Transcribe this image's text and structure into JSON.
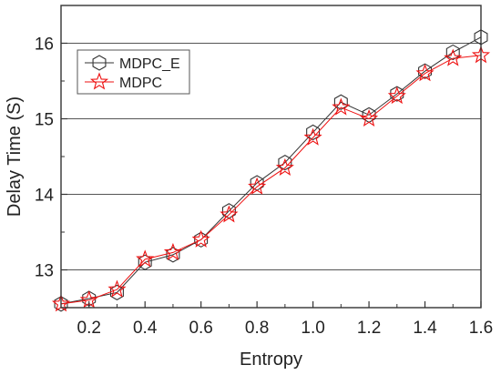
{
  "chart_data": {
    "type": "line",
    "title": "",
    "xlabel": "Entropy",
    "ylabel": "Delay Time (S)",
    "xlim": [
      0.1,
      1.6
    ],
    "ylim": [
      12.5,
      16.5
    ],
    "grid": "horizontal",
    "legend_position": "top-left",
    "x": [
      0.1,
      0.2,
      0.3,
      0.4,
      0.5,
      0.6,
      0.7,
      0.8,
      0.9,
      1.0,
      1.1,
      1.2,
      1.3,
      1.4,
      1.5,
      1.6
    ],
    "x_ticks": [
      "0.2",
      "0.4",
      "0.6",
      "0.8",
      "1.0",
      "1.2",
      "1.4",
      "1.6"
    ],
    "x_tick_values": [
      0.2,
      0.4,
      0.6,
      0.8,
      1.0,
      1.2,
      1.4,
      1.6
    ],
    "y_ticks": [
      "13",
      "14",
      "15",
      "16"
    ],
    "y_tick_values": [
      13,
      14,
      15,
      16
    ],
    "series": [
      {
        "name": "MDPC_E",
        "color": "#333333",
        "marker": "hexagon",
        "values": [
          12.55,
          12.62,
          12.7,
          13.1,
          13.2,
          13.4,
          13.78,
          14.15,
          14.42,
          14.82,
          15.22,
          15.05,
          15.33,
          15.63,
          15.88,
          16.08
        ]
      },
      {
        "name": "MDPC",
        "color": "#ee1111",
        "marker": "star",
        "values": [
          12.55,
          12.6,
          12.74,
          13.14,
          13.23,
          13.4,
          13.73,
          14.1,
          14.35,
          14.75,
          15.15,
          15.0,
          15.3,
          15.6,
          15.8,
          15.84
        ]
      }
    ]
  }
}
